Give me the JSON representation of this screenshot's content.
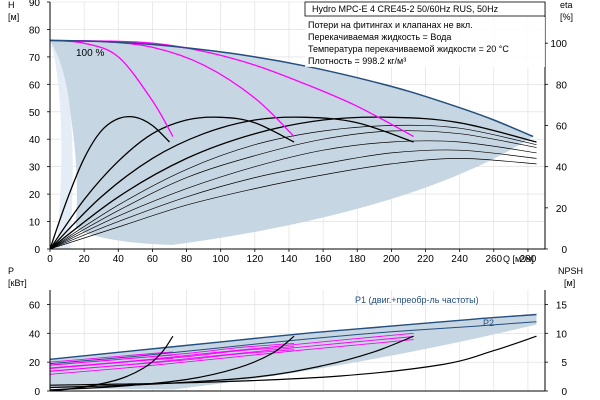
{
  "colors": {
    "envelope": "#c7d6e3",
    "envelope_light": "#e4edf6",
    "max_curve": "#234e7e",
    "efficiency": "#ff00ff",
    "curve": "#000000",
    "p1_label": "#234e7e",
    "axes": "#000000"
  },
  "chart_data": [
    {
      "type": "line",
      "id": "head",
      "title": "Hydro MPC-E 4 CRE45-2 50/60Hz RUS, 50Hz",
      "notes": [
        "Потери на фитингах и клапанах не вкл.",
        "Перекачиваемая жидкость = Вода",
        "Температура перекачиваемой жидкости = 20 °C",
        "Плотность = 998.2 кг/м³"
      ],
      "xlabel": "Q [м³/ч]",
      "ylabel": "H",
      "ylabel_unit": "[м]",
      "y2label": "eta",
      "y2label_unit": "[%]",
      "xlim": [
        0,
        290
      ],
      "ylim": [
        0,
        90
      ],
      "y2lim": [
        0,
        120
      ],
      "x_ticks": [
        "0",
        "20",
        "40",
        "60",
        "80",
        "100",
        "120",
        "140",
        "160",
        "180",
        "200",
        "220",
        "240",
        "260",
        "280"
      ],
      "y_ticks": [
        "0",
        "10",
        "20",
        "30",
        "40",
        "50",
        "60",
        "70",
        "80",
        "90"
      ],
      "y2_ticks": [
        "0",
        "20",
        "40",
        "60",
        "80",
        "100"
      ],
      "speed_label": "100 %",
      "max_curve": {
        "x": [
          0,
          30,
          60,
          90,
          120,
          150,
          180,
          210,
          240,
          260,
          283
        ],
        "y": [
          76,
          75.6,
          74.5,
          72.6,
          70,
          66.6,
          62.4,
          57.5,
          51.5,
          47,
          41
        ]
      },
      "head_at_speed": [
        {
          "x": [
            0,
            20,
            40,
            60,
            72
          ],
          "y": [
            76,
            75,
            70,
            54,
            41
          ]
        },
        {
          "x": [
            0,
            30,
            60,
            90,
            120,
            143
          ],
          "y": [
            76,
            75.6,
            73.5,
            67,
            55,
            41
          ]
        },
        {
          "x": [
            0,
            30,
            60,
            90,
            120,
            150,
            180,
            213
          ],
          "y": [
            76,
            75.8,
            75,
            72,
            67,
            60,
            52,
            41
          ]
        }
      ],
      "efficiency_curves": [
        {
          "x": [
            0,
            10,
            20,
            30,
            40,
            50,
            60,
            70
          ],
          "y": [
            0,
            18,
            33,
            43,
            47.5,
            48,
            45,
            39
          ]
        },
        {
          "x": [
            0,
            20,
            40,
            60,
            80,
            100,
            120,
            143
          ],
          "y": [
            0,
            18,
            32,
            42,
            47,
            48,
            46,
            39
          ]
        },
        {
          "x": [
            0,
            30,
            60,
            90,
            120,
            150,
            180,
            213
          ],
          "y": [
            0,
            19,
            33,
            42,
            47,
            48,
            46,
            39
          ]
        },
        {
          "x": [
            0,
            40,
            80,
            120,
            160,
            200,
            240,
            285
          ],
          "y": [
            0,
            19,
            33,
            42,
            47,
            48,
            46,
            39
          ]
        }
      ],
      "shaded_curves": [
        {
          "x": [
            0,
            40,
            80,
            120,
            160,
            200,
            240,
            285
          ],
          "y": [
            0,
            16,
            29,
            38,
            43,
            45,
            44,
            38
          ]
        },
        {
          "x": [
            0,
            40,
            80,
            120,
            160,
            200,
            240,
            285
          ],
          "y": [
            0,
            14,
            26,
            34,
            40,
            43,
            42,
            37
          ]
        },
        {
          "x": [
            0,
            40,
            80,
            120,
            160,
            200,
            240,
            285
          ],
          "y": [
            0,
            12,
            22,
            30,
            36,
            39,
            39,
            35
          ]
        },
        {
          "x": [
            0,
            40,
            80,
            120,
            160,
            200,
            240,
            285
          ],
          "y": [
            0,
            10,
            19,
            26,
            31,
            35,
            36,
            33
          ]
        },
        {
          "x": [
            0,
            40,
            80,
            120,
            160,
            200,
            240,
            285
          ],
          "y": [
            0,
            8,
            16,
            22,
            27,
            31,
            33,
            31
          ]
        }
      ]
    },
    {
      "type": "line",
      "id": "power",
      "xlabel": "",
      "ylabel": "P",
      "ylabel_unit": "[кВт]",
      "y2label": "NPSH",
      "y2label_unit": "[м]",
      "xlim": [
        0,
        290
      ],
      "ylim": [
        0,
        70
      ],
      "y2lim": [
        0,
        17.5
      ],
      "y_ticks": [
        "0",
        "20",
        "40",
        "60"
      ],
      "y2_ticks": [
        "0",
        "5",
        "10",
        "15"
      ],
      "series_labels": [
        "P1 (двиг.+преобр-ль частоты)",
        "P2"
      ],
      "p1_curve": {
        "x": [
          0,
          50,
          100,
          150,
          200,
          250,
          285
        ],
        "y": [
          22,
          28,
          34,
          40,
          45,
          50,
          53
        ]
      },
      "p2_curve": {
        "x": [
          0,
          50,
          100,
          150,
          200,
          250,
          285
        ],
        "y": [
          19,
          24,
          30,
          36,
          41,
          45,
          48
        ]
      },
      "p1_partial": [
        {
          "x": [
            0,
            30,
            60,
            72
          ],
          "y": [
            20,
            23,
            26,
            27
          ]
        },
        {
          "x": [
            0,
            40,
            80,
            110,
            143
          ],
          "y": [
            18,
            22,
            26,
            30,
            33
          ]
        },
        {
          "x": [
            0,
            50,
            100,
            150,
            213
          ],
          "y": [
            16,
            21,
            27,
            33,
            40
          ]
        }
      ],
      "npsh_curves": [
        {
          "x": [
            0,
            20,
            40,
            55,
            65,
            72
          ],
          "y": [
            0,
            0.7,
            2,
            4,
            6.5,
            9.5
          ]
        },
        {
          "x": [
            0,
            40,
            80,
            110,
            130,
            143
          ],
          "y": [
            0.2,
            0.8,
            2,
            4,
            6.5,
            9.5
          ]
        },
        {
          "x": [
            0,
            60,
            120,
            160,
            190,
            213
          ],
          "y": [
            0.6,
            1.2,
            2.4,
            4.4,
            6.8,
            9.5
          ]
        },
        {
          "x": [
            0,
            90,
            170,
            230,
            260,
            285
          ],
          "y": [
            1,
            1.5,
            2.6,
            4.6,
            7,
            9.5
          ]
        }
      ]
    }
  ]
}
